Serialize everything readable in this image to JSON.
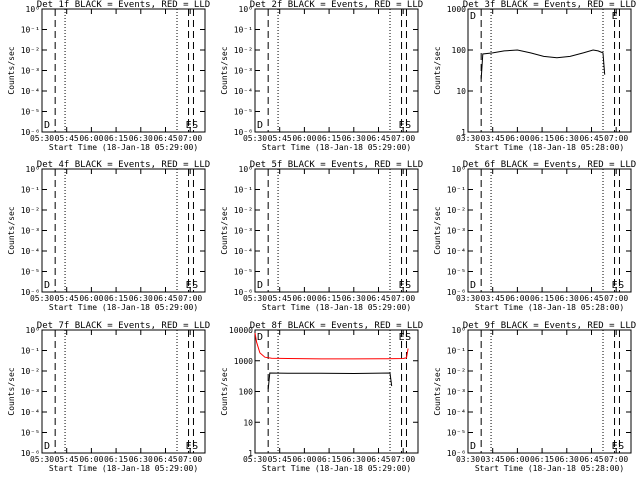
{
  "figure": {
    "ylabel": "Counts/sec",
    "background": "#ffffff"
  },
  "chart_data": [
    {
      "type": "line",
      "title": "Det 1f BLACK = Events, RED = LLD",
      "xlabel": "Start Time (18-Jan-18 05:29:00)",
      "xticks": [
        "05:30",
        "05:45",
        "06:00",
        "06:15",
        "06:30",
        "06:45",
        "07:00"
      ],
      "ylabel": "Counts/sec",
      "yscale": "log",
      "yticks": [
        "10⁰",
        "10⁻¹",
        "10⁻²",
        "10⁻³",
        "10⁻⁴",
        "10⁻⁵",
        "10⁻⁶"
      ],
      "dashed_lines": [
        "05:38",
        "06:59",
        "07:02"
      ],
      "dotted_lines": [
        "05:44",
        "06:52"
      ],
      "annotations": [
        {
          "text": "D",
          "x": "05:30"
        },
        {
          "text": "E",
          "x": "06:56"
        },
        {
          "text": "S",
          "x": "07:00"
        }
      ],
      "series": []
    },
    {
      "type": "line",
      "title": "Det 2f BLACK = Events, RED = LLD",
      "xlabel": "Start Time (18-Jan-18 05:29:00)",
      "xticks": [
        "05:30",
        "05:45",
        "06:00",
        "06:15",
        "06:30",
        "06:45",
        "07:00"
      ],
      "ylabel": "Counts/sec",
      "yscale": "log",
      "yticks": [
        "10⁰",
        "10⁻¹",
        "10⁻²",
        "10⁻³",
        "10⁻⁴",
        "10⁻⁵",
        "10⁻⁶"
      ],
      "dashed_lines": [
        "05:38",
        "06:59",
        "07:02"
      ],
      "dotted_lines": [
        "05:44",
        "06:52"
      ],
      "annotations": [
        {
          "text": "D",
          "x": "05:30"
        },
        {
          "text": "E",
          "x": "06:56"
        },
        {
          "text": "S",
          "x": "07:00"
        }
      ],
      "series": []
    },
    {
      "type": "line",
      "title": "Det 3f BLACK = Events, RED = LLD",
      "xlabel": "Start Time (18-Jan-18 05:28:00)",
      "xticks": [
        "03:30",
        "03:45",
        "06:00",
        "06:15",
        "06:30",
        "06:45",
        "07:00"
      ],
      "ylabel": "Counts/sec",
      "yscale": "log",
      "yticks": [
        "1000",
        "100",
        "10",
        "1"
      ],
      "dashed_lines": [
        "05:38",
        "06:59",
        "07:02"
      ],
      "dotted_lines": [
        "05:44",
        "06:52"
      ],
      "annotations": [
        {
          "text": "D",
          "x": "05:30"
        },
        {
          "text": "E",
          "x": "06:56"
        }
      ],
      "series": [
        {
          "color": "#000000",
          "x": [
            "05:38",
            "05:39",
            "05:45",
            "05:52",
            "06:00",
            "06:08",
            "06:16",
            "06:24",
            "06:32",
            "06:40",
            "06:46",
            "06:49",
            "06:52",
            "06:53"
          ],
          "y": [
            20,
            80,
            85,
            95,
            100,
            85,
            70,
            65,
            70,
            85,
            100,
            95,
            85,
            25
          ]
        }
      ]
    },
    {
      "type": "line",
      "title": "Det 4f BLACK = Events, RED = LLD",
      "xlabel": "Start Time (18-Jan-18 05:29:00)",
      "xticks": [
        "05:30",
        "05:45",
        "06:00",
        "06:15",
        "06:30",
        "06:45",
        "07:00"
      ],
      "ylabel": "Counts/sec",
      "yscale": "log",
      "yticks": [
        "10⁰",
        "10⁻¹",
        "10⁻²",
        "10⁻³",
        "10⁻⁴",
        "10⁻⁵",
        "10⁻⁶"
      ],
      "dashed_lines": [
        "05:38",
        "06:59",
        "07:02"
      ],
      "dotted_lines": [
        "05:44",
        "06:52"
      ],
      "annotations": [
        {
          "text": "D",
          "x": "05:30"
        },
        {
          "text": "E",
          "x": "06:56"
        },
        {
          "text": "S",
          "x": "07:00"
        }
      ],
      "series": []
    },
    {
      "type": "line",
      "title": "Det 5f BLACK = Events, RED = LLD",
      "xlabel": "Start Time (18-Jan-18 05:29:00)",
      "xticks": [
        "05:30",
        "05:45",
        "06:00",
        "06:15",
        "06:30",
        "06:45",
        "07:00"
      ],
      "ylabel": "Counts/sec",
      "yscale": "log",
      "yticks": [
        "10⁰",
        "10⁻¹",
        "10⁻²",
        "10⁻³",
        "10⁻⁴",
        "10⁻⁵",
        "10⁻⁶"
      ],
      "dashed_lines": [
        "05:38",
        "06:59",
        "07:02"
      ],
      "dotted_lines": [
        "05:44",
        "06:52"
      ],
      "annotations": [
        {
          "text": "D",
          "x": "05:30"
        },
        {
          "text": "E",
          "x": "06:56"
        },
        {
          "text": "S",
          "x": "07:00"
        }
      ],
      "series": []
    },
    {
      "type": "line",
      "title": "Det 6f BLACK = Events, RED = LLD",
      "xlabel": "Start Time (18-Jan-18 05:28:00)",
      "xticks": [
        "03:30",
        "03:45",
        "06:00",
        "06:15",
        "06:30",
        "06:45",
        "07:00"
      ],
      "ylabel": "Counts/sec",
      "yscale": "log",
      "yticks": [
        "10⁰",
        "10⁻¹",
        "10⁻²",
        "10⁻³",
        "10⁻⁴",
        "10⁻⁵",
        "10⁻⁶"
      ],
      "dashed_lines": [
        "05:38",
        "06:59",
        "07:02"
      ],
      "dotted_lines": [
        "05:44",
        "06:52"
      ],
      "annotations": [
        {
          "text": "D",
          "x": "05:30"
        },
        {
          "text": "E",
          "x": "06:56"
        },
        {
          "text": "S",
          "x": "07:00"
        }
      ],
      "series": []
    },
    {
      "type": "line",
      "title": "Det 7f BLACK = Events, RED = LLD",
      "xlabel": "Start Time (18-Jan-18 05:29:00)",
      "xticks": [
        "05:30",
        "05:45",
        "06:00",
        "06:15",
        "06:30",
        "06:45",
        "07:00"
      ],
      "ylabel": "Counts/sec",
      "yscale": "log",
      "yticks": [
        "10⁰",
        "10⁻¹",
        "10⁻²",
        "10⁻³",
        "10⁻⁴",
        "10⁻⁵",
        "10⁻⁶"
      ],
      "dashed_lines": [
        "05:38",
        "06:59",
        "07:02"
      ],
      "dotted_lines": [
        "05:44",
        "06:52"
      ],
      "annotations": [
        {
          "text": "D",
          "x": "05:30"
        },
        {
          "text": "E",
          "x": "06:56"
        },
        {
          "text": "S",
          "x": "07:00"
        }
      ],
      "series": []
    },
    {
      "type": "line",
      "title": "Det 8f BLACK = Events, RED = LLD",
      "xlabel": "Start Time (18-Jan-18 05:29:00)",
      "xticks": [
        "05:30",
        "05:45",
        "06:00",
        "06:15",
        "06:30",
        "06:45",
        "07:00"
      ],
      "ylabel": "Counts/sec",
      "yscale": "log",
      "yticks": [
        "10000",
        "1000",
        "100",
        "10",
        "1"
      ],
      "dashed_lines": [
        "05:38",
        "06:59",
        "07:02"
      ],
      "dotted_lines": [
        "05:44",
        "06:52"
      ],
      "annotations": [
        {
          "text": "D",
          "x": "05:30"
        },
        {
          "text": "E",
          "x": "06:56"
        },
        {
          "text": "S",
          "x": "07:00"
        }
      ],
      "series": [
        {
          "color": "#000000",
          "x": [
            "05:38",
            "05:39",
            "05:50",
            "06:10",
            "06:30",
            "06:52",
            "06:53"
          ],
          "y": [
            120,
            400,
            390,
            390,
            385,
            400,
            150
          ]
        },
        {
          "color": "#ff0000",
          "x": [
            "05:30",
            "05:31",
            "05:33",
            "05:36",
            "05:40",
            "05:50",
            "06:10",
            "06:30",
            "06:50",
            "07:00",
            "07:02",
            "07:03"
          ],
          "y": [
            8000,
            4000,
            1800,
            1300,
            1200,
            1180,
            1150,
            1150,
            1170,
            1180,
            1250,
            2500
          ]
        }
      ]
    },
    {
      "type": "line",
      "title": "Det 9f BLACK = Events, RED = LLD",
      "xlabel": "Start Time (18-Jan-18 05:28:00)",
      "xticks": [
        "03:30",
        "03:45",
        "06:00",
        "06:15",
        "06:30",
        "06:45",
        "07:00"
      ],
      "ylabel": "Counts/sec",
      "yscale": "log",
      "yticks": [
        "10⁰",
        "10⁻¹",
        "10⁻²",
        "10⁻³",
        "10⁻⁴",
        "10⁻⁵",
        "10⁻⁶"
      ],
      "dashed_lines": [
        "05:38",
        "06:59",
        "07:02"
      ],
      "dotted_lines": [
        "05:44",
        "06:52"
      ],
      "annotations": [
        {
          "text": "D",
          "x": "05:30"
        },
        {
          "text": "E",
          "x": "06:56"
        },
        {
          "text": "S",
          "x": "07:00"
        }
      ],
      "series": []
    }
  ]
}
